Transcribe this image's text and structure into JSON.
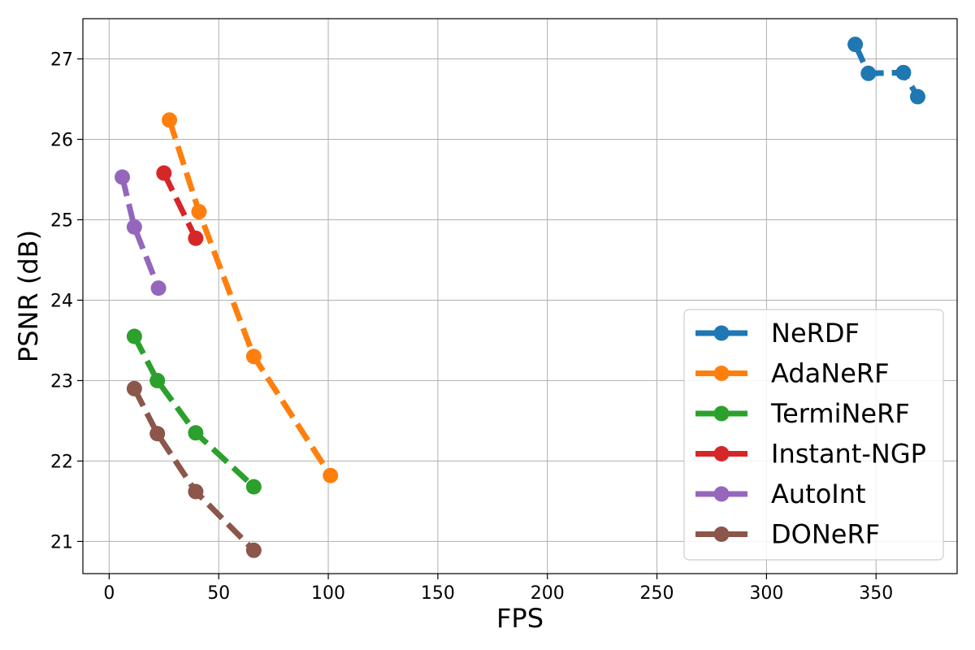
{
  "chart_data": {
    "type": "line",
    "title": "",
    "xlabel": "FPS",
    "ylabel": "PSNR (dB)",
    "xlim": [
      -12,
      387
    ],
    "ylim": [
      20.6,
      27.5
    ],
    "xticks": [
      0,
      50,
      100,
      150,
      200,
      250,
      300,
      350
    ],
    "yticks": [
      21,
      22,
      23,
      24,
      25,
      26,
      27
    ],
    "grid": true,
    "legend": "lower-right",
    "series": [
      {
        "name": "NeRDF",
        "color": "#1f77b4",
        "x": [
          340.5,
          346.5,
          362.5,
          369.0
        ],
        "y": [
          27.18,
          26.82,
          26.83,
          26.53
        ]
      },
      {
        "name": "AdaNeRF",
        "color": "#ff7f0e",
        "x": [
          27.5,
          41.0,
          66.0,
          101.0
        ],
        "y": [
          26.24,
          25.1,
          23.3,
          21.82
        ]
      },
      {
        "name": "TermiNeRF",
        "color": "#2ca02c",
        "x": [
          11.5,
          22.0,
          39.5,
          66.0
        ],
        "y": [
          23.55,
          23.0,
          22.35,
          21.68
        ]
      },
      {
        "name": "Instant-NGP",
        "color": "#d62728",
        "x": [
          25.0,
          39.5
        ],
        "y": [
          25.58,
          24.77
        ]
      },
      {
        "name": "AutoInt",
        "color": "#9467bd",
        "x": [
          6.0,
          11.5,
          22.5
        ],
        "y": [
          25.53,
          24.91,
          24.15
        ]
      },
      {
        "name": "DONeRF",
        "color": "#8c564b",
        "x": [
          11.5,
          22.0,
          39.5,
          66.0
        ],
        "y": [
          22.9,
          22.34,
          21.62,
          20.89
        ]
      }
    ]
  }
}
